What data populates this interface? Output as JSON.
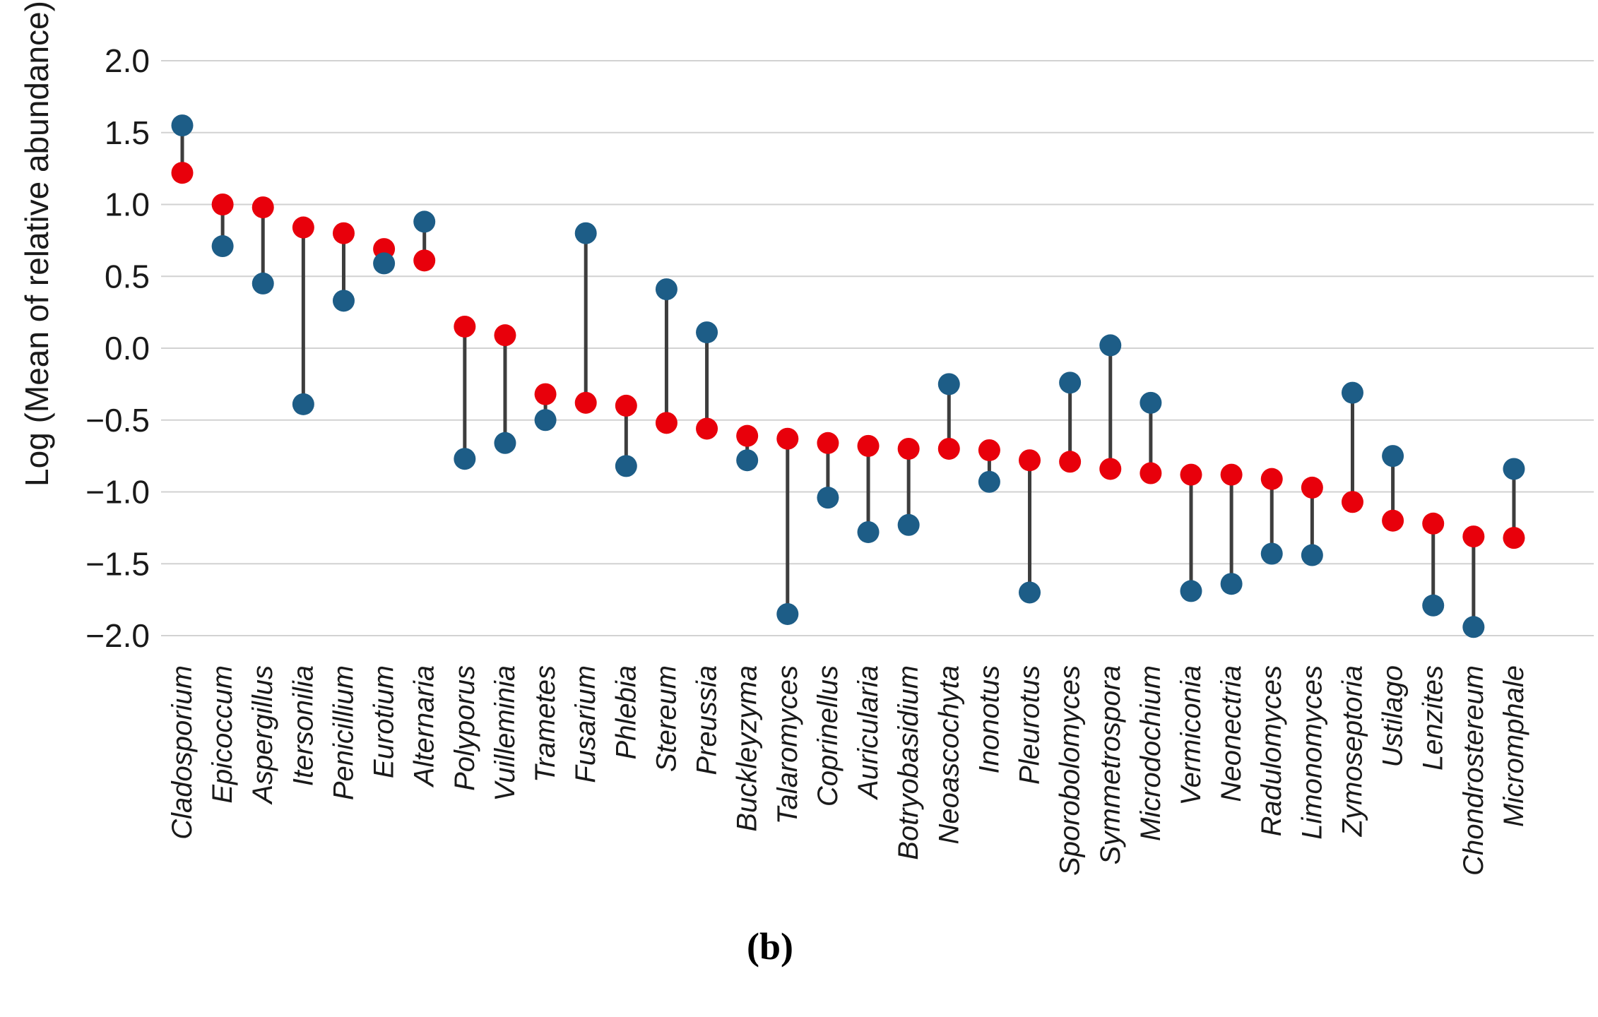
{
  "figure": {
    "caption": "(b)"
  },
  "chart_data": {
    "type": "dumbbell",
    "title": "",
    "xlabel": "",
    "ylabel": "Log (Mean of relative abundance)",
    "ylim": [
      -2.0,
      2.0
    ],
    "yticks": [
      2.0,
      1.5,
      1.0,
      0.5,
      0.0,
      -0.5,
      -1.0,
      -1.5,
      -2.0
    ],
    "ytick_labels": [
      "2.0",
      "1.5",
      "1.0",
      "0.5",
      "0.0",
      "−0.5",
      "−1.0",
      "−1.5",
      "−2.0"
    ],
    "grid": true,
    "legend": "none",
    "caption": "(b)",
    "categories": [
      "Cladosporium",
      "Epicoccum",
      "Aspergillus",
      "Itersonilia",
      "Penicillium",
      "Eurotium",
      "Alternaria",
      "Polyporus",
      "Vuilleminia",
      "Trametes",
      "Fusarium",
      "Phlebia",
      "Stereum",
      "Preussia",
      "Buckleyzyma",
      "Talaromyces",
      "Coprinellus",
      "Auricularia",
      "Botryobasidium",
      "Neoascochyta",
      "Inonotus",
      "Pleurotus",
      "Sporobolomyces",
      "Symmetrospora",
      "Microdochium",
      "Vermiconia",
      "Neonectria",
      "Radulomyces",
      "Limonomyces",
      "Zymoseptoria",
      "Ustilago",
      "Lenzites",
      "Chondrostereum",
      "Micromphale"
    ],
    "series": [
      {
        "name": "blue",
        "color": "#1d5d87",
        "values": [
          1.55,
          0.71,
          0.45,
          -0.39,
          0.33,
          0.59,
          0.88,
          -0.77,
          -0.66,
          -0.5,
          0.8,
          -0.82,
          0.41,
          0.11,
          -0.78,
          -1.85,
          -1.04,
          -1.28,
          -1.23,
          -0.25,
          -0.93,
          -1.7,
          -0.24,
          0.02,
          -0.38,
          -1.69,
          -1.64,
          -1.43,
          -1.44,
          -0.31,
          -0.75,
          -1.79,
          -1.94,
          -0.84
        ]
      },
      {
        "name": "red",
        "color": "#e8000b",
        "values": [
          1.22,
          1.0,
          0.98,
          0.84,
          0.8,
          0.69,
          0.61,
          0.15,
          0.09,
          -0.32,
          -0.38,
          -0.4,
          -0.52,
          -0.56,
          -0.61,
          -0.63,
          -0.66,
          -0.68,
          -0.7,
          -0.7,
          -0.71,
          -0.78,
          -0.79,
          -0.84,
          -0.87,
          -0.88,
          -0.88,
          -0.91,
          -0.97,
          -1.07,
          -1.2,
          -1.22,
          -1.31,
          -1.32
        ]
      }
    ],
    "connector_color": "#3d3d3d",
    "grid_color": "#d2d2d2",
    "text_color": "#1a1a1a"
  }
}
